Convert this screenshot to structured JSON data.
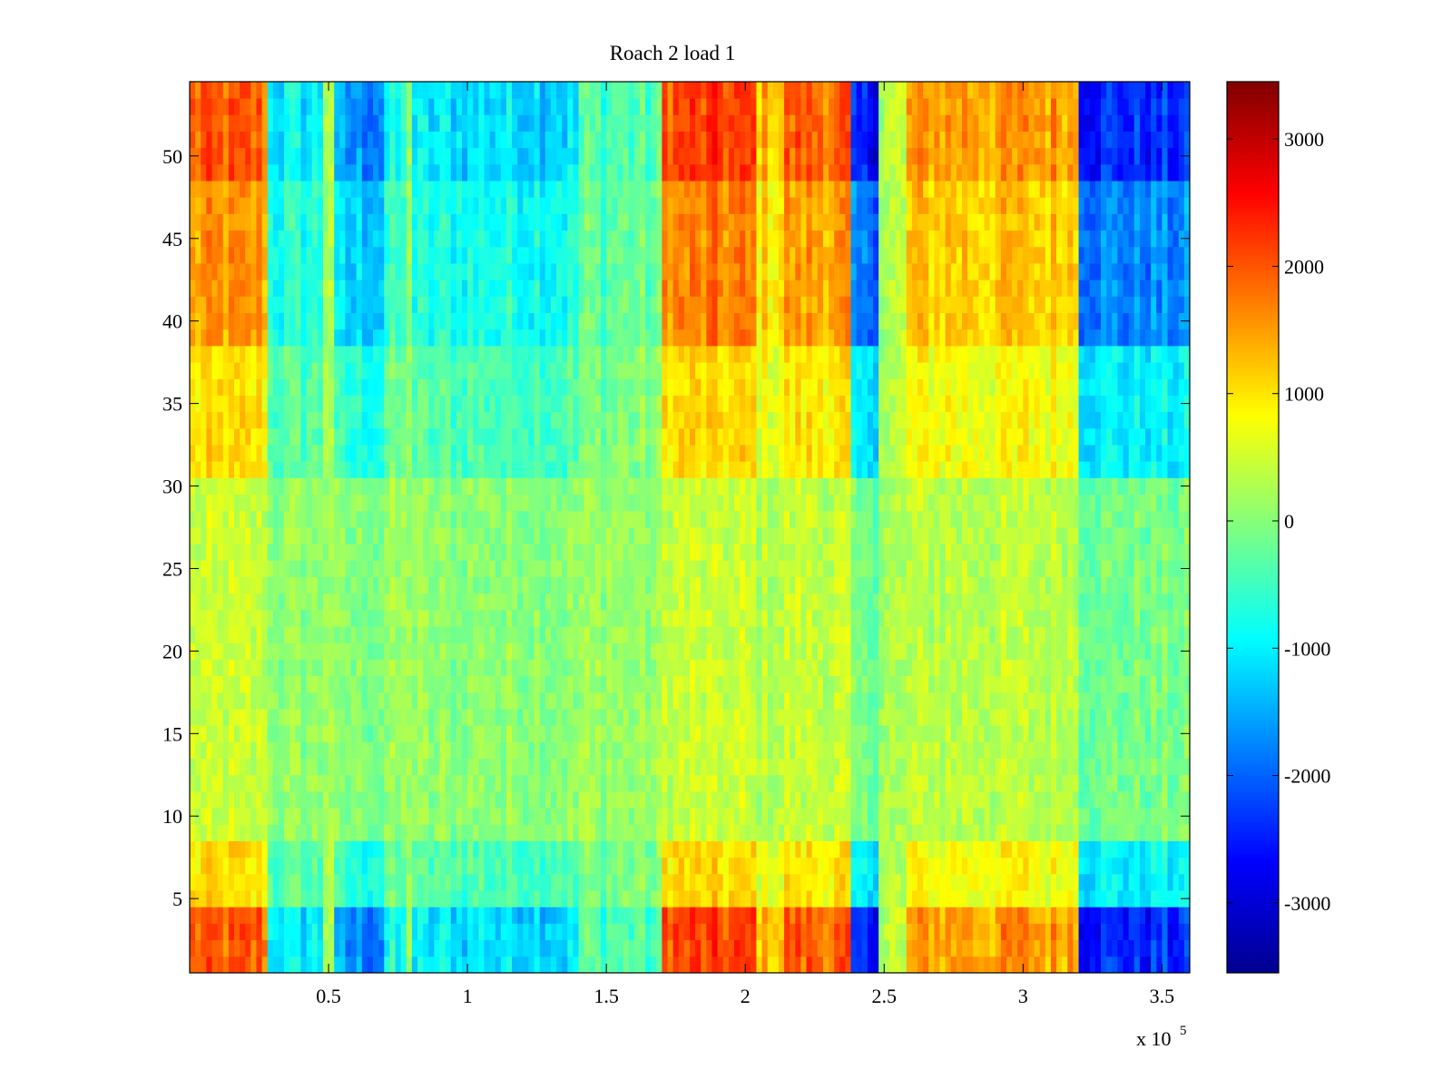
{
  "chart_data": {
    "type": "heatmap",
    "title": "Roach 2 load 1",
    "xlabel": "",
    "ylabel": "",
    "x_range": [
      0,
      360000
    ],
    "y_range": [
      0.5,
      54.5
    ],
    "x_multiplier_label": "x 10",
    "x_multiplier_exponent": "5",
    "x_ticks": [
      0.5,
      1,
      1.5,
      2,
      2.5,
      3,
      3.5
    ],
    "y_ticks": [
      5,
      10,
      15,
      20,
      25,
      30,
      35,
      40,
      45,
      50
    ],
    "colorbar": {
      "colormap": "jet",
      "range": [
        -3550,
        3450
      ],
      "ticks": [
        3000,
        2000,
        1000,
        0,
        -1000,
        -2000,
        -3000
      ]
    },
    "x_column_profile": [
      {
        "x_start": 0,
        "x_end": 28000,
        "value": 1900
      },
      {
        "x_start": 28000,
        "x_end": 48000,
        "value": -1000
      },
      {
        "x_start": 48000,
        "x_end": 52000,
        "value": 400
      },
      {
        "x_start": 52000,
        "x_end": 70000,
        "value": -1700
      },
      {
        "x_start": 70000,
        "x_end": 78000,
        "value": -900
      },
      {
        "x_start": 78000,
        "x_end": 80000,
        "value": 300
      },
      {
        "x_start": 80000,
        "x_end": 140000,
        "value": -1100
      },
      {
        "x_start": 140000,
        "x_end": 170000,
        "value": -400
      },
      {
        "x_start": 170000,
        "x_end": 205000,
        "value": 2100
      },
      {
        "x_start": 205000,
        "x_end": 215000,
        "value": 1300
      },
      {
        "x_start": 215000,
        "x_end": 239000,
        "value": 1900
      },
      {
        "x_start": 239000,
        "x_end": 248000,
        "value": -2600
      },
      {
        "x_start": 248000,
        "x_end": 258000,
        "value": 300
      },
      {
        "x_start": 258000,
        "x_end": 320000,
        "value": 1500
      },
      {
        "x_start": 320000,
        "x_end": 360000,
        "value": -2400
      }
    ],
    "y_row_profile": [
      {
        "y_start": 0.5,
        "y_end": 4.5,
        "weight": 1.0
      },
      {
        "y_start": 4.5,
        "y_end": 8.5,
        "weight": 0.45
      },
      {
        "y_start": 8.5,
        "y_end": 30.5,
        "weight": 0.12
      },
      {
        "y_start": 30.5,
        "y_end": 38.5,
        "weight": 0.45
      },
      {
        "y_start": 38.5,
        "y_end": 48.5,
        "weight": 0.75
      },
      {
        "y_start": 48.5,
        "y_end": 54.5,
        "weight": 1.0
      }
    ],
    "baseline_value": 200
  }
}
